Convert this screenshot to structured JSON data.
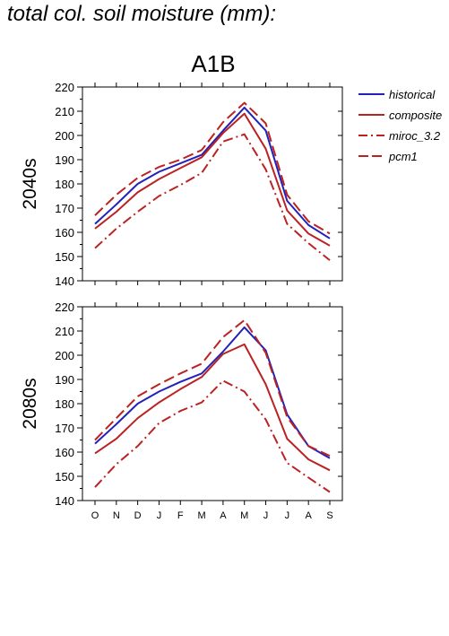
{
  "page": {
    "title": "total col. soil moisture (mm):",
    "scenario": "A1B"
  },
  "colors": {
    "historical": "#2222bb",
    "composite": "#bb2222",
    "miroc_3.2": "#bb2222",
    "pcm1": "#bb2222"
  },
  "legend": [
    {
      "name": "historical",
      "style": "solid",
      "color": "#2222bb"
    },
    {
      "name": "composite",
      "style": "solid",
      "color": "#bb2222"
    },
    {
      "name": "miroc_3.2",
      "style": "dashdot",
      "color": "#bb2222"
    },
    {
      "name": "pcm1",
      "style": "dashed",
      "color": "#bb2222"
    }
  ],
  "chart_data": [
    {
      "type": "line",
      "panel_label": "2040s",
      "categories": [
        "O",
        "N",
        "D",
        "J",
        "F",
        "M",
        "A",
        "M",
        "J",
        "J",
        "A",
        "S"
      ],
      "ylim": [
        140,
        220
      ],
      "yticks": [
        140,
        150,
        160,
        170,
        180,
        190,
        200,
        210,
        220
      ],
      "series": [
        {
          "name": "historical",
          "values": [
            163.5,
            171.5,
            180,
            185,
            188.5,
            192,
            202,
            211.5,
            202,
            173,
            163,
            157.5
          ]
        },
        {
          "name": "composite",
          "values": [
            161.5,
            168.5,
            176.5,
            182,
            186.5,
            191,
            201,
            209,
            194.5,
            169,
            159.5,
            154.5
          ]
        },
        {
          "name": "miroc_3.2",
          "values": [
            153.5,
            161.5,
            168.5,
            175,
            179.5,
            184.5,
            197.5,
            200.5,
            186,
            163.5,
            155.5,
            148.5
          ]
        },
        {
          "name": "pcm1",
          "values": [
            167,
            175.5,
            182.5,
            187,
            190,
            194,
            205.5,
            213.5,
            205,
            175.5,
            164.5,
            159.5
          ]
        }
      ]
    },
    {
      "type": "line",
      "panel_label": "2080s",
      "categories": [
        "O",
        "N",
        "D",
        "J",
        "F",
        "M",
        "A",
        "M",
        "J",
        "J",
        "A",
        "S"
      ],
      "ylim": [
        140,
        220
      ],
      "yticks": [
        140,
        150,
        160,
        170,
        180,
        190,
        200,
        210,
        220
      ],
      "series": [
        {
          "name": "historical",
          "values": [
            163.5,
            171.5,
            180,
            185,
            189,
            192.5,
            201.5,
            211.5,
            202,
            175.5,
            162.5,
            157.5
          ]
        },
        {
          "name": "composite",
          "values": [
            159.5,
            165.5,
            174,
            180.5,
            186,
            191,
            200.5,
            204.5,
            188,
            165.5,
            157,
            152.5
          ]
        },
        {
          "name": "miroc_3.2",
          "values": [
            145.5,
            155,
            162.5,
            172,
            177,
            180.5,
            189.5,
            185,
            173.5,
            155.5,
            149.5,
            143.5
          ]
        },
        {
          "name": "pcm1",
          "values": [
            165,
            174,
            183,
            188,
            192.5,
            196.5,
            207.5,
            214.5,
            201,
            174.5,
            162.5,
            158.5
          ]
        }
      ]
    }
  ]
}
